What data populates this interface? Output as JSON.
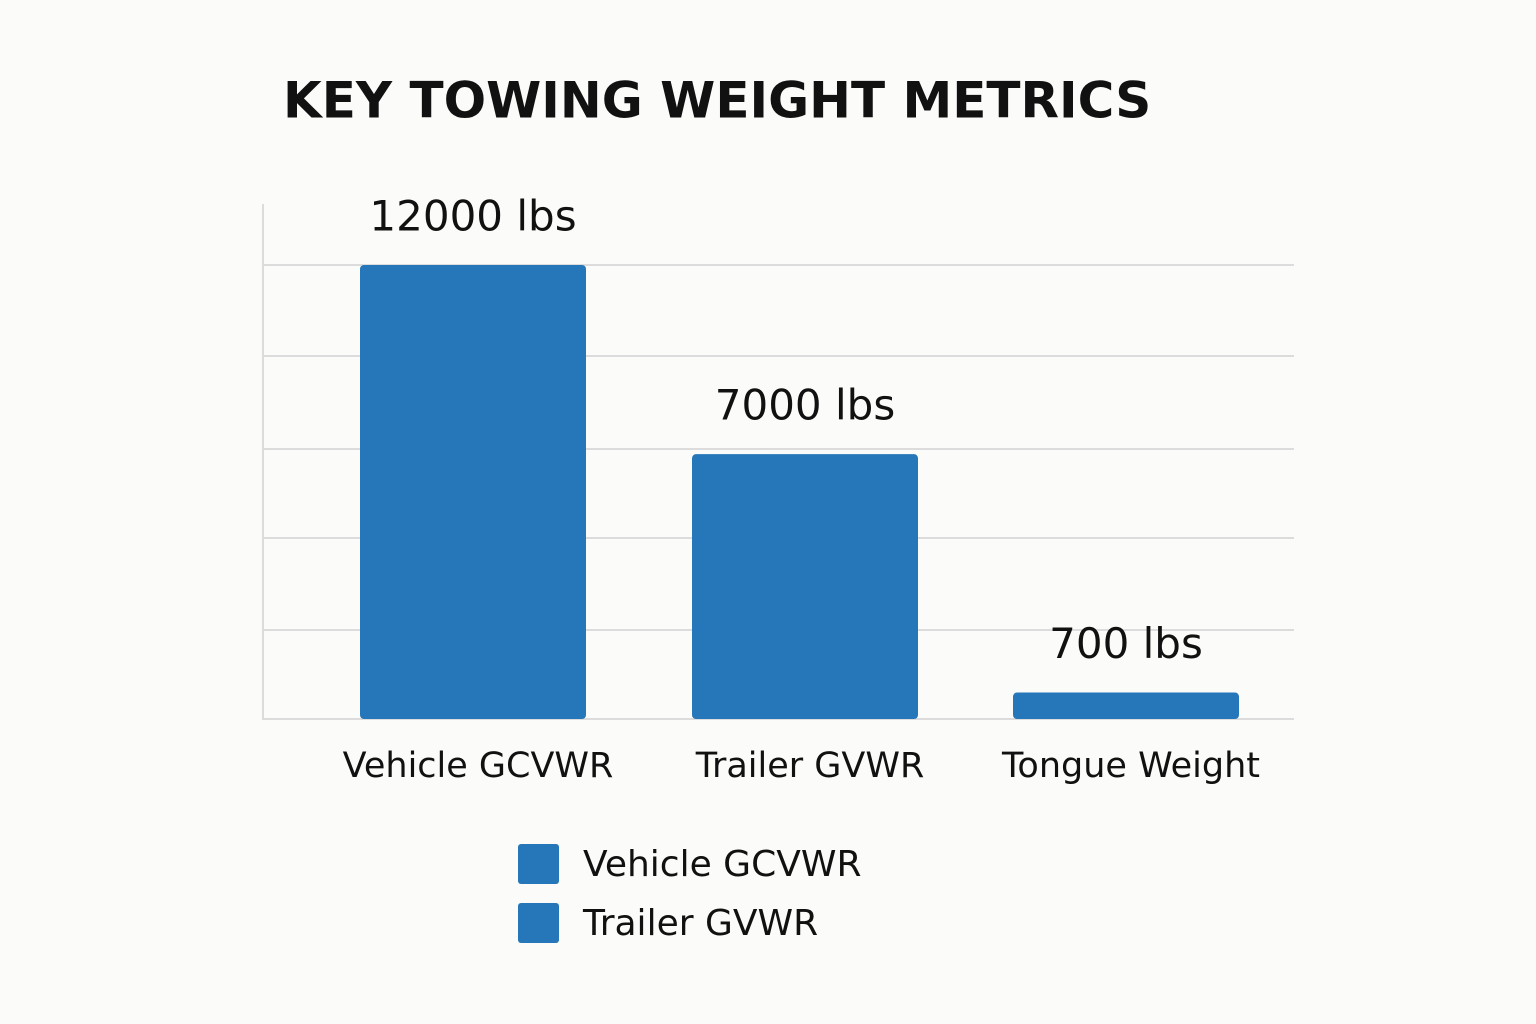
{
  "chart_data": {
    "type": "bar",
    "title": "KEY TOWING WEIGHT METRICS",
    "categories": [
      "Vehicle GCVWR",
      "Trailer GVWR",
      "Tongue Weight"
    ],
    "values": [
      12000,
      7000,
      700
    ],
    "value_labels": [
      "12000 lbs",
      "7000 lbs",
      "700 lbs"
    ],
    "color": "#2677b9",
    "ylim": [
      0,
      12000
    ],
    "legend": [
      {
        "name": "Vehicle GCVWR",
        "color": "#2677b9"
      },
      {
        "name": "Trailer GVWR",
        "color": "#2677b9"
      }
    ]
  }
}
